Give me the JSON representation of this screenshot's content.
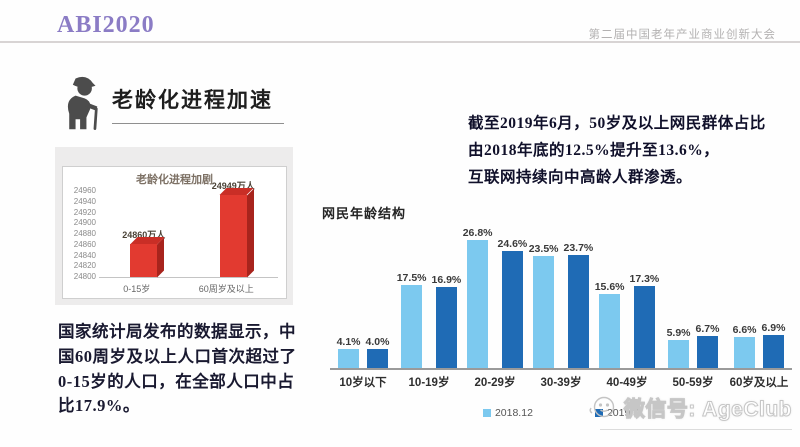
{
  "header": {
    "logo": "ABI2020",
    "conference": "第二届中国老年产业商业创新大会"
  },
  "left": {
    "section_title": "老龄化进程加速",
    "body_text": "国家统计局发布的数据显示，中国60周岁及以上人口首次超过了0-15岁的人口，在全部人口中占比17.9%。"
  },
  "right": {
    "intro_lines": [
      "截至2019年6月，50岁及以上网民群体占比",
      "由2018年底的12.5%提升至13.6%，",
      "互联网持续向中高龄人群渗透。"
    ]
  },
  "watermark": {
    "icon": "wechat-face-icon",
    "text": "微信号: AgeClub"
  },
  "chart_data": [
    {
      "type": "bar",
      "title": "老龄化进程加剧",
      "categories": [
        "0-15岁",
        "60周岁及以上"
      ],
      "values": [
        24860,
        24949
      ],
      "data_labels": [
        "24860万人",
        "24949万人"
      ],
      "unit": "万人",
      "ylim": [
        24800,
        24960
      ],
      "yticks": [
        24800,
        24820,
        24840,
        24860,
        24880,
        24900,
        24920,
        24940,
        24960
      ],
      "bar_front_color": "#e23a30",
      "bar_side_color": "#a8241d",
      "bar_top_color": "#c92e26",
      "legend_position": "none",
      "grid": false
    },
    {
      "type": "bar",
      "title": "网民年龄结构",
      "categories": [
        "10岁以下",
        "10-19岁",
        "20-29岁",
        "30-39岁",
        "40-49岁",
        "50-59岁",
        "60岁及以上"
      ],
      "series": [
        {
          "name": "2018.12",
          "color": "#7cc9ef",
          "values": [
            4.1,
            17.5,
            26.8,
            23.5,
            15.6,
            5.9,
            6.6
          ]
        },
        {
          "name": "2019.6",
          "color": "#1f6bb5",
          "values": [
            4.0,
            16.9,
            24.6,
            23.7,
            17.3,
            6.7,
            6.9
          ]
        }
      ],
      "value_suffix": "%",
      "ylim": [
        0,
        30
      ],
      "legend_position": "bottom",
      "grid": false
    }
  ]
}
